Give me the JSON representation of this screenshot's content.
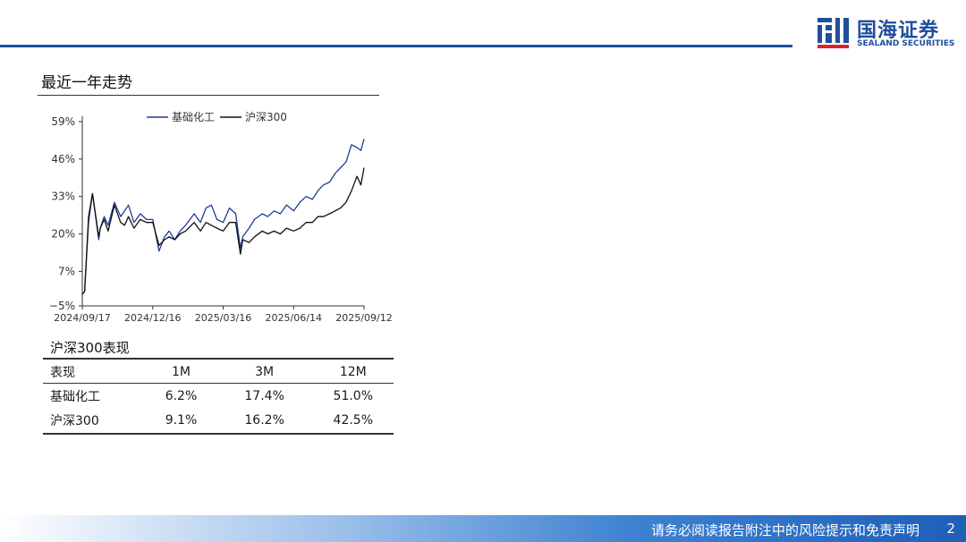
{
  "brand": {
    "name_cn": "国海证券",
    "name_en": "SEALAND SECURITIES",
    "color": "#1f4e9c"
  },
  "chart_data": {
    "type": "line",
    "title": "最近一年走势",
    "legend_position": "top-center",
    "ylim": [
      -5,
      59
    ],
    "yticks": [
      -5,
      7,
      20,
      33,
      46,
      59
    ],
    "ytick_labels": [
      "−5%",
      "7%",
      "20%",
      "33%",
      "46%",
      "59%"
    ],
    "xticks": [
      "2024/09/17",
      "2024/12/16",
      "2025/03/16",
      "2025/06/14",
      "2025/09/12"
    ],
    "x": [
      "2024/09/17",
      "2024/09/20",
      "2024/09/25",
      "2024/09/30",
      "2024/10/08",
      "2024/10/10",
      "2024/10/15",
      "2024/10/20",
      "2024/10/28",
      "2024/11/05",
      "2024/11/10",
      "2024/11/15",
      "2024/11/22",
      "2024/11/30",
      "2024/12/08",
      "2024/12/16",
      "2024/12/24",
      "2024/12/31",
      "2025/01/06",
      "2025/01/13",
      "2025/01/20",
      "2025/01/27",
      "2025/02/07",
      "2025/02/15",
      "2025/02/22",
      "2025/03/01",
      "2025/03/08",
      "2025/03/16",
      "2025/03/24",
      "2025/04/01",
      "2025/04/07",
      "2025/04/10",
      "2025/04/18",
      "2025/04/25",
      "2025/05/05",
      "2025/05/12",
      "2025/05/20",
      "2025/05/28",
      "2025/06/05",
      "2025/06/14",
      "2025/06/22",
      "2025/06/30",
      "2025/07/08",
      "2025/07/15",
      "2025/07/22",
      "2025/07/30",
      "2025/08/06",
      "2025/08/13",
      "2025/08/20",
      "2025/08/27",
      "2025/09/03",
      "2025/09/08",
      "2025/09/12"
    ],
    "series": [
      {
        "name": "基础化工",
        "color": "#1f3d99",
        "values": [
          -1,
          0,
          24,
          34,
          18,
          22,
          26,
          23,
          31,
          26,
          28,
          30,
          24,
          27,
          25,
          25,
          14,
          19,
          21,
          18,
          21,
          23,
          27,
          24,
          29,
          30,
          25,
          24,
          29,
          27,
          15,
          19,
          22,
          25,
          27,
          26,
          28,
          27,
          30,
          28,
          31,
          33,
          32,
          35,
          37,
          38,
          41,
          43,
          45,
          51,
          50,
          49,
          53
        ]
      },
      {
        "name": "沪深300",
        "color": "#111111",
        "values": [
          -1,
          0,
          26,
          34,
          19,
          22,
          25,
          21,
          30,
          24,
          23,
          26,
          22,
          25,
          24,
          24,
          16,
          18,
          19,
          18,
          20,
          21,
          24,
          21,
          24,
          23,
          22,
          21,
          24,
          24,
          13,
          18,
          17,
          19,
          21,
          20,
          21,
          20,
          22,
          21,
          22,
          24,
          24,
          26,
          26,
          27,
          28,
          29,
          31,
          35,
          40,
          37,
          43
        ]
      }
    ]
  },
  "table": {
    "title": "沪深300表现",
    "headers": [
      "表现",
      "1M",
      "3M",
      "12M"
    ],
    "rows": [
      [
        "基础化工",
        "6.2%",
        "17.4%",
        "51.0%"
      ],
      [
        "沪深300",
        "9.1%",
        "16.2%",
        "42.5%"
      ]
    ]
  },
  "footer": {
    "disclaimer": "请务必阅读报告附注中的风险提示和免责声明",
    "page": "2"
  }
}
